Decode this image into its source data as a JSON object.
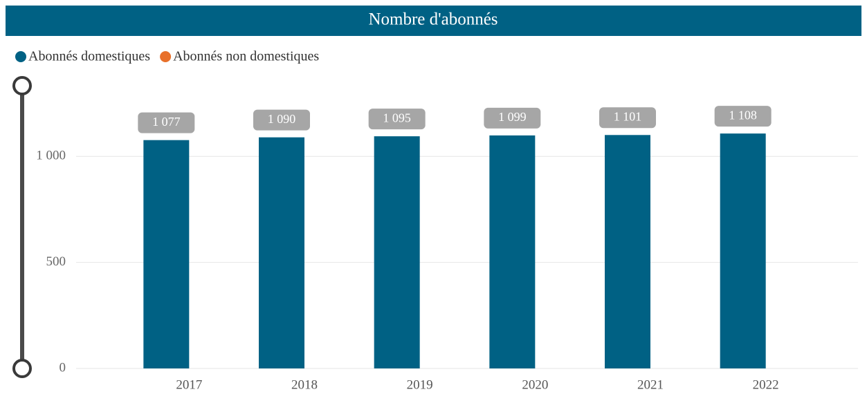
{
  "chart_data": {
    "type": "bar",
    "title": "Nombre d'abonnés",
    "categories": [
      "2017",
      "2018",
      "2019",
      "2020",
      "2021",
      "2022"
    ],
    "series": [
      {
        "name": "Abonnés domestiques",
        "color": "#006184",
        "values": [
          1077,
          1090,
          1095,
          1099,
          1101,
          1108
        ],
        "value_labels": [
          "1 077",
          "1 090",
          "1 095",
          "1 099",
          "1 101",
          "1 108"
        ]
      },
      {
        "name": "Abonnés non domestiques",
        "color": "#e8702a",
        "values": [
          null,
          null,
          null,
          null,
          null,
          null
        ]
      }
    ],
    "ylim": [
      0,
      1340
    ],
    "yticks": [
      0,
      500,
      {
        "value": 1000,
        "label": "1 000"
      }
    ],
    "grid": true
  }
}
